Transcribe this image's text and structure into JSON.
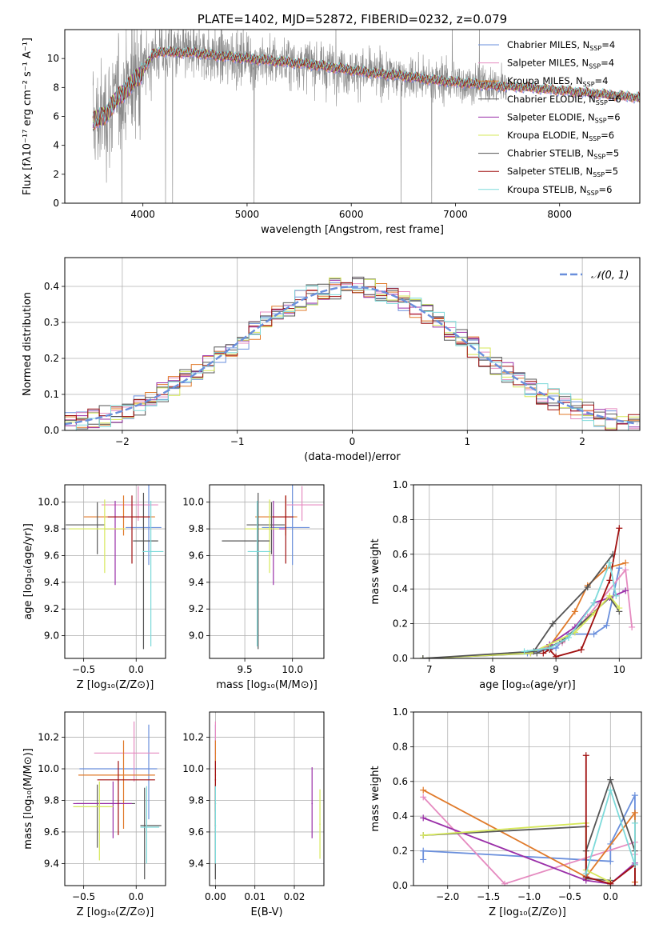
{
  "colors": {
    "chabrier_miles": "#6a8fdc",
    "salpeter_miles": "#e58bc0",
    "kroupa_miles": "#e07a2a",
    "chabrier_elodie": "#5a5a5a",
    "salpeter_elodie": "#9a2fa8",
    "kroupa_elodie": "#d6e85a",
    "chabrier_stelib": "#555555",
    "salpeter_stelib": "#a01010",
    "kroupa_stelib": "#7ddada",
    "data_grey": "#8a8a8a",
    "normal_curve": "#6a8fdc"
  },
  "chart_data": [
    {
      "id": "spectrum",
      "type": "line",
      "title": "PLATE=1402, MJD=52872, FIBERID=0232, z=0.079",
      "xlabel": "wavelength [Angstrom, rest frame]",
      "ylabel": "Flux [fλ10⁻¹⁷ erg cm⁻² s⁻¹ A⁻¹]",
      "xlim": [
        3250,
        8770
      ],
      "ylim": [
        0,
        12
      ],
      "xticks": [
        4000,
        5000,
        6000,
        7000,
        8000
      ],
      "yticks": [
        0,
        2,
        4,
        6,
        8,
        10
      ],
      "legend_position": "upper right",
      "legend": [
        {
          "label": "Chabrier MILES, N_SSP=4",
          "color": "chabrier_miles"
        },
        {
          "label": "Salpeter MILES, N_SSP=4",
          "color": "salpeter_miles"
        },
        {
          "label": "Kroupa MILES, N_SSP=4",
          "color": "kroupa_miles"
        },
        {
          "label": "Chabrier ELODIE, N_SSP=6",
          "color": "chabrier_elodie"
        },
        {
          "label": "Salpeter ELODIE, N_SSP=6",
          "color": "salpeter_elodie"
        },
        {
          "label": "Kroupa ELODIE, N_SSP=6",
          "color": "kroupa_elodie"
        },
        {
          "label": "Chabrier STELIB, N_SSP=5",
          "color": "chabrier_stelib"
        },
        {
          "label": "Salpeter STELIB, N_SSP=5",
          "color": "salpeter_stelib"
        },
        {
          "label": "Kroupa STELIB, N_SSP=6",
          "color": "kroupa_stelib"
        }
      ],
      "continuum": [
        [
          3520,
          5.6
        ],
        [
          3600,
          5.9
        ],
        [
          3700,
          6.7
        ],
        [
          3800,
          7.6
        ],
        [
          3880,
          8.2
        ],
        [
          3950,
          8.6
        ],
        [
          4000,
          9.2
        ],
        [
          4100,
          10.3
        ],
        [
          4200,
          10.5
        ],
        [
          4300,
          10.4
        ],
        [
          4500,
          10.4
        ],
        [
          4700,
          10.2
        ],
        [
          5000,
          10.0
        ],
        [
          5300,
          9.8
        ],
        [
          5600,
          9.6
        ],
        [
          5900,
          9.3
        ],
        [
          6200,
          9.0
        ],
        [
          6500,
          8.8
        ],
        [
          6800,
          8.5
        ],
        [
          7100,
          8.3
        ],
        [
          7400,
          8.1
        ],
        [
          7700,
          8.0
        ],
        [
          8000,
          7.8
        ],
        [
          8300,
          7.6
        ],
        [
          8600,
          7.4
        ],
        [
          8770,
          7.3
        ]
      ]
    },
    {
      "id": "residuals",
      "type": "histogram",
      "xlabel": "(data-model)/error",
      "ylabel": "Normed distribution",
      "xlim": [
        -2.5,
        2.5
      ],
      "ylim": [
        0,
        0.48
      ],
      "xticks": [
        -2,
        -1,
        0,
        1,
        2
      ],
      "yticks": [
        0.0,
        0.1,
        0.2,
        0.3,
        0.4
      ],
      "legend_position": "upper right",
      "legend": [
        {
          "label": "𝒩(0, 1)",
          "color": "normal_curve",
          "style": "dashed"
        }
      ],
      "bin_width": 0.1,
      "normal": {
        "mean": 0,
        "sigma": 1
      }
    },
    {
      "id": "age_vs_Z",
      "type": "errorbar",
      "xlabel": "Z [log₁₀(Z/Z⊙)]",
      "ylabel": "age  [log₁₀(age/yr)]",
      "xlim": [
        -0.68,
        0.28
      ],
      "ylim": [
        8.83,
        10.13
      ],
      "xticks": [
        -0.5,
        0.0
      ],
      "yticks": [
        9.0,
        9.2,
        9.4,
        9.6,
        9.8,
        10.0
      ],
      "points": [
        {
          "x": 0.12,
          "y": 9.81,
          "xerr": [
            0.22,
            0.12
          ],
          "yerr": [
            0.28,
            0.33
          ],
          "color": "chabrier_miles"
        },
        {
          "x": 0.02,
          "y": 9.98,
          "xerr": [
            0.35,
            0.19
          ],
          "yerr": [
            0.12,
            0.14
          ],
          "color": "salpeter_miles"
        },
        {
          "x": -0.12,
          "y": 9.89,
          "xerr": [
            0.38,
            0.3
          ],
          "yerr": [
            0.14,
            0.16
          ],
          "color": "kroupa_miles"
        },
        {
          "x": -0.37,
          "y": 9.83,
          "xerr": [
            0.3,
            0.07
          ],
          "yerr": [
            0.22,
            0.17
          ],
          "color": "chabrier_elodie"
        },
        {
          "x": -0.2,
          "y": 9.8,
          "xerr": [
            0.1,
            0.1
          ],
          "yerr": [
            0.42,
            0.21
          ],
          "color": "salpeter_elodie"
        },
        {
          "x": -0.3,
          "y": 9.8,
          "xerr": [
            0.34,
            0.2
          ],
          "yerr": [
            0.33,
            0.22
          ],
          "color": "kroupa_elodie"
        },
        {
          "x": 0.07,
          "y": 9.71,
          "xerr": [
            0.1,
            0.14
          ],
          "yerr": [
            0.81,
            0.36
          ],
          "color": "chabrier_stelib"
        },
        {
          "x": -0.04,
          "y": 9.89,
          "xerr": [
            0.23,
            0.17
          ],
          "yerr": [
            0.35,
            0.16
          ],
          "color": "salpeter_stelib"
        },
        {
          "x": 0.14,
          "y": 9.63,
          "xerr": [
            0.08,
            0.12
          ],
          "yerr": [
            0.71,
            0.38
          ],
          "color": "kroupa_stelib"
        }
      ]
    },
    {
      "id": "age_vs_mass",
      "type": "errorbar",
      "xlabel": "mass [log₁₀(M/M⊙)]",
      "ylabel": "",
      "xlim": [
        9.13,
        10.33
      ],
      "ylim": [
        8.83,
        10.13
      ],
      "xticks": [
        9.5,
        10.0
      ],
      "yticks": [
        9.0,
        9.2,
        9.4,
        9.6,
        9.8,
        10.0
      ],
      "points": [
        {
          "x": 10.0,
          "y": 9.81,
          "xerr": [
            0.32,
            0.18
          ],
          "yerr": [
            0.28,
            0.33
          ],
          "color": "chabrier_miles"
        },
        {
          "x": 10.1,
          "y": 9.98,
          "xerr": [
            0.16,
            0.22
          ],
          "yerr": [
            0.12,
            0.14
          ],
          "color": "salpeter_miles"
        },
        {
          "x": 9.93,
          "y": 9.89,
          "xerr": [
            0.32,
            0.12
          ],
          "yerr": [
            0.14,
            0.16
          ],
          "color": "kroupa_miles"
        },
        {
          "x": 9.78,
          "y": 9.83,
          "xerr": [
            0.26,
            0.14
          ],
          "yerr": [
            0.22,
            0.17
          ],
          "color": "chabrier_elodie"
        },
        {
          "x": 9.8,
          "y": 9.8,
          "xerr": [
            0.16,
            0.12
          ],
          "yerr": [
            0.42,
            0.21
          ],
          "color": "salpeter_elodie"
        },
        {
          "x": 9.76,
          "y": 9.8,
          "xerr": [
            0.26,
            0.1
          ],
          "yerr": [
            0.33,
            0.22
          ],
          "color": "kroupa_elodie"
        },
        {
          "x": 9.64,
          "y": 9.71,
          "xerr": [
            0.38,
            0.12
          ],
          "yerr": [
            0.81,
            0.36
          ],
          "color": "chabrier_stelib"
        },
        {
          "x": 9.93,
          "y": 9.89,
          "xerr": [
            0.14,
            0.08
          ],
          "yerr": [
            0.35,
            0.16
          ],
          "color": "salpeter_stelib"
        },
        {
          "x": 9.63,
          "y": 9.63,
          "xerr": [
            0.1,
            0.14
          ],
          "yerr": [
            0.71,
            0.38
          ],
          "color": "kroupa_stelib"
        }
      ]
    },
    {
      "id": "weight_vs_age",
      "type": "line",
      "xlabel": "age  [log₁₀(age/yr)]",
      "ylabel": "mass weight",
      "xlim": [
        6.75,
        10.35
      ],
      "ylim": [
        0,
        1.0
      ],
      "xticks": [
        7,
        8,
        9,
        10
      ],
      "yticks": [
        0.0,
        0.2,
        0.4,
        0.6,
        0.8,
        1.0
      ],
      "series": [
        {
          "color": "chabrier_miles",
          "x": [
            8.55,
            9.0,
            9.2,
            9.6,
            9.8,
            10.0
          ],
          "y": [
            0.03,
            0.06,
            0.14,
            0.14,
            0.19,
            0.52
          ]
        },
        {
          "color": "salpeter_miles",
          "x": [
            8.7,
            9.1,
            9.5,
            10.1,
            10.2
          ],
          "y": [
            0.05,
            0.09,
            0.24,
            0.51,
            0.18
          ]
        },
        {
          "color": "kroupa_miles",
          "x": [
            8.9,
            9.3,
            9.5,
            9.8,
            10.1
          ],
          "y": [
            0.07,
            0.27,
            0.42,
            0.52,
            0.55
          ]
        },
        {
          "color": "chabrier_elodie",
          "x": [
            6.9,
            8.7,
            9.1,
            9.4,
            9.85,
            10.0
          ],
          "y": [
            0.0,
            0.03,
            0.1,
            0.2,
            0.35,
            0.27
          ]
        },
        {
          "color": "salpeter_elodie",
          "x": [
            8.6,
            8.9,
            9.3,
            9.6,
            9.85,
            10.1
          ],
          "y": [
            0.03,
            0.08,
            0.18,
            0.32,
            0.35,
            0.39
          ]
        },
        {
          "color": "kroupa_elodie",
          "x": [
            6.9,
            8.6,
            9.3,
            9.6,
            9.85,
            10.0
          ],
          "y": [
            0.0,
            0.03,
            0.15,
            0.26,
            0.36,
            0.29
          ]
        },
        {
          "color": "chabrier_stelib",
          "x": [
            6.9,
            8.65,
            8.95,
            9.5,
            9.9
          ],
          "y": [
            0.0,
            0.04,
            0.2,
            0.41,
            0.6
          ]
        },
        {
          "color": "salpeter_stelib",
          "x": [
            8.8,
            8.9,
            9.0,
            9.4,
            9.85,
            10.0
          ],
          "y": [
            0.03,
            0.05,
            0.01,
            0.05,
            0.45,
            0.75
          ]
        },
        {
          "color": "kroupa_stelib",
          "x": [
            8.5,
            8.9,
            9.2,
            9.6,
            9.85,
            9.95
          ],
          "y": [
            0.04,
            0.06,
            0.12,
            0.32,
            0.55,
            0.36
          ]
        }
      ]
    },
    {
      "id": "mass_vs_Z",
      "type": "errorbar",
      "xlabel": "Z [log₁₀(Z/Z⊙)]",
      "ylabel": "mass [log₁₀(M/M⊙)]",
      "xlim": [
        -0.68,
        0.28
      ],
      "ylim": [
        9.26,
        10.36
      ],
      "xticks": [
        -0.5,
        0.0
      ],
      "yticks": [
        9.4,
        9.6,
        9.8,
        10.0,
        10.2
      ],
      "points": [
        {
          "x": 0.12,
          "y": 10.0,
          "xerr": [
            0.66,
            0.08
          ],
          "yerr": [
            0.32,
            0.28
          ],
          "color": "chabrier_miles"
        },
        {
          "x": -0.02,
          "y": 10.1,
          "xerr": [
            0.38,
            0.24
          ],
          "yerr": [
            0.18,
            0.2
          ],
          "color": "salpeter_miles"
        },
        {
          "x": -0.12,
          "y": 9.96,
          "xerr": [
            0.43,
            0.3
          ],
          "yerr": [
            0.34,
            0.22
          ],
          "color": "kroupa_miles"
        },
        {
          "x": -0.37,
          "y": 9.78,
          "xerr": [
            0.2,
            0.36
          ],
          "yerr": [
            0.28,
            0.12
          ],
          "color": "chabrier_elodie"
        },
        {
          "x": -0.22,
          "y": 9.78,
          "xerr": [
            0.38,
            0.18
          ],
          "yerr": [
            0.22,
            0.14
          ],
          "color": "salpeter_elodie"
        },
        {
          "x": -0.35,
          "y": 9.76,
          "xerr": [
            0.25,
            0.13
          ],
          "yerr": [
            0.34,
            0.16
          ],
          "color": "kroupa_elodie"
        },
        {
          "x": 0.08,
          "y": 9.64,
          "xerr": [
            0.04,
            0.16
          ],
          "yerr": [
            0.34,
            0.24
          ],
          "color": "chabrier_stelib"
        },
        {
          "x": -0.17,
          "y": 9.93,
          "xerr": [
            0.2,
            0.35
          ],
          "yerr": [
            0.35,
            0.12
          ],
          "color": "salpeter_stelib"
        },
        {
          "x": 0.1,
          "y": 9.63,
          "xerr": [
            0.06,
            0.12
          ],
          "yerr": [
            0.23,
            0.26
          ],
          "color": "kroupa_stelib"
        }
      ]
    },
    {
      "id": "mass_vs_ebv",
      "type": "errorbar",
      "xlabel": "E(B-V)",
      "ylabel": "",
      "xlim": [
        -0.0015,
        0.0275
      ],
      "ylim": [
        9.26,
        10.36
      ],
      "xticks": [
        0.0,
        0.01,
        0.02
      ],
      "xtick_labels": [
        "0.00",
        "0.01",
        "0.02"
      ],
      "yticks": [
        9.4,
        9.6,
        9.8,
        10.0,
        10.2
      ],
      "points": [
        {
          "x": 0.0,
          "y": 10.0,
          "yerr": [
            0.32,
            0.28
          ],
          "color": "chabrier_miles"
        },
        {
          "x": 0.0,
          "y": 10.1,
          "yerr": [
            0.18,
            0.2
          ],
          "color": "salpeter_miles"
        },
        {
          "x": 0.0,
          "y": 9.96,
          "yerr": [
            0.34,
            0.22
          ],
          "color": "kroupa_miles"
        },
        {
          "x": 0.0,
          "y": 9.78,
          "yerr": [
            0.48,
            0.12
          ],
          "color": "chabrier_elodie"
        },
        {
          "x": 0.0245,
          "y": 9.78,
          "yerr": [
            0.22,
            0.23
          ],
          "color": "salpeter_elodie"
        },
        {
          "x": 0.0265,
          "y": 9.65,
          "yerr": [
            0.22,
            0.22
          ],
          "color": "kroupa_elodie"
        },
        {
          "x": 0.0,
          "y": 9.64,
          "yerr": [
            0.34,
            0.24
          ],
          "color": "chabrier_stelib"
        },
        {
          "x": 0.0,
          "y": 9.93,
          "yerr": [
            0.2,
            0.12
          ],
          "color": "salpeter_stelib"
        },
        {
          "x": 0.0,
          "y": 9.63,
          "yerr": [
            0.23,
            0.26
          ],
          "color": "kroupa_stelib"
        }
      ]
    },
    {
      "id": "weight_vs_Z",
      "type": "line",
      "xlabel": "Z [log₁₀(Z/Z⊙)]",
      "ylabel": "mass weight",
      "xlim": [
        -2.42,
        0.38
      ],
      "ylim": [
        0,
        1.0
      ],
      "xticks": [
        -2.0,
        -1.5,
        -1.0,
        -0.5,
        0.0
      ],
      "yticks": [
        0.0,
        0.2,
        0.4,
        0.6,
        0.8,
        1.0
      ],
      "series": [
        {
          "color": "chabrier_miles",
          "x": [
            -2.3,
            -2.3,
            0.0,
            0.0,
            0.3,
            0.3
          ],
          "y": [
            0.15,
            0.2,
            0.14,
            0.24,
            0.52,
            0.12
          ]
        },
        {
          "color": "salpeter_miles",
          "x": [
            -2.3,
            -1.3,
            0.3,
            0.3
          ],
          "y": [
            0.51,
            0.01,
            0.25,
            0.18
          ]
        },
        {
          "color": "kroupa_miles",
          "x": [
            -2.3,
            -0.3,
            0.3,
            0.3
          ],
          "y": [
            0.55,
            0.05,
            0.42,
            0.02
          ]
        },
        {
          "color": "chabrier_elodie",
          "x": [
            -2.3,
            -0.3,
            -0.3,
            0.0,
            0.0
          ],
          "y": [
            0.29,
            0.34,
            0.04,
            0.03,
            0.0
          ]
        },
        {
          "color": "salpeter_elodie",
          "x": [
            -2.3,
            -0.3,
            0.0,
            0.3
          ],
          "y": [
            0.39,
            0.03,
            0.01,
            0.13
          ]
        },
        {
          "color": "kroupa_elodie",
          "x": [
            -2.3,
            -0.3,
            -0.3,
            0.0
          ],
          "y": [
            0.29,
            0.36,
            0.09,
            0.02
          ]
        },
        {
          "color": "chabrier_stelib",
          "x": [
            -0.3,
            -0.3,
            0.0,
            0.3,
            0.3
          ],
          "y": [
            0.05,
            0.2,
            0.61,
            0.2,
            0.0
          ]
        },
        {
          "color": "salpeter_stelib",
          "x": [
            -0.3,
            -0.3,
            0.0,
            0.3,
            0.3
          ],
          "y": [
            0.75,
            0.05,
            0.01,
            0.12,
            0.0
          ]
        },
        {
          "color": "kroupa_stelib",
          "x": [
            -0.3,
            0.0,
            0.3,
            0.3
          ],
          "y": [
            0.07,
            0.55,
            0.12,
            0.36
          ]
        }
      ]
    }
  ]
}
